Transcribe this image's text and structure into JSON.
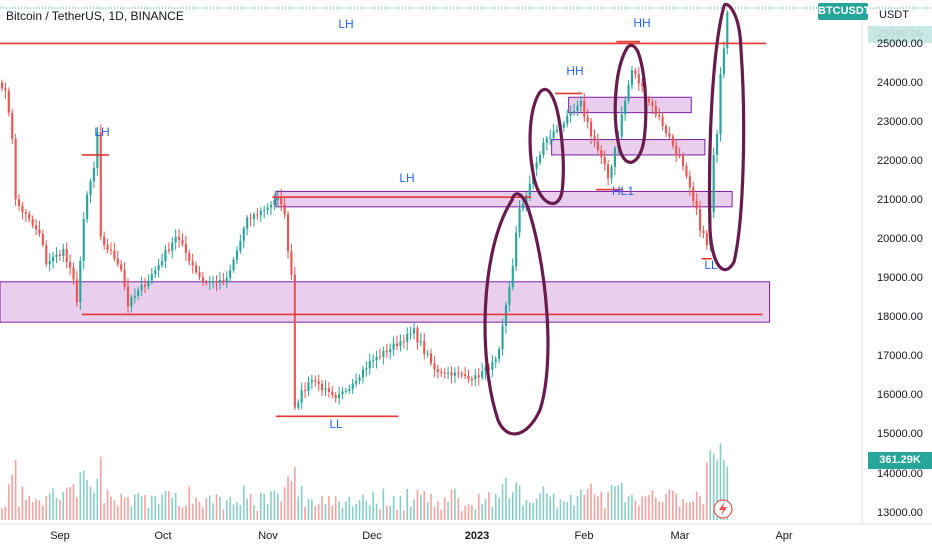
{
  "header": {
    "title": "Bitcoin / TetherUS, 1D, BINANCE"
  },
  "price_axis": {
    "currency": "USDT",
    "ticker_badge": "BTCUSDT",
    "ticker_price": "25500.00",
    "volume_badge": "361.29K",
    "ticks": [
      "25000.00",
      "24000.00",
      "23000.00",
      "22000.00",
      "21000.00",
      "20000.00",
      "19000.00",
      "18000.00",
      "17000.00",
      "16000.00",
      "15000.00",
      "14000.00",
      "13000.00"
    ]
  },
  "time_axis": {
    "ticks": [
      "Sep",
      "Oct",
      "Nov",
      "Dec",
      "2023",
      "Feb",
      "Mar",
      "Apr"
    ]
  },
  "annotations": {
    "lh_top": "LH",
    "lh_left": "LH",
    "lh_mid": "LH",
    "hh_top": "HH",
    "hh_left": "HH",
    "hl1": "HL1",
    "ll_nov": "LL",
    "ll_mar": "LL"
  },
  "colors": {
    "up": "#26a69a",
    "down": "#ef5350",
    "level": "#e53935",
    "zone_fill": "#e1bee7",
    "zone_border": "#7b1fa2",
    "marker": "#6a1b4d",
    "label": "#2962ff"
  },
  "chart_data": {
    "type": "candlestick",
    "title": "Bitcoin / TetherUS, 1D, BINANCE",
    "y_range": [
      12800,
      26300
    ],
    "x_range": [
      "2022-08-15",
      "2023-04-04"
    ],
    "date_ticks": [
      "Sep",
      "Oct",
      "Nov",
      "Dec",
      "2023",
      "Feb",
      "Mar",
      "Apr"
    ],
    "close_path": [
      {
        "date": "2022-08-15",
        "close": 24300
      },
      {
        "date": "2022-08-18",
        "close": 23200
      },
      {
        "date": "2022-08-19",
        "close": 21200
      },
      {
        "date": "2022-08-26",
        "close": 20300
      },
      {
        "date": "2022-08-28",
        "close": 19600
      },
      {
        "date": "2022-09-02",
        "close": 19900
      },
      {
        "date": "2022-09-06",
        "close": 18800
      },
      {
        "date": "2022-09-09",
        "close": 21300
      },
      {
        "date": "2022-09-12",
        "close": 22400
      },
      {
        "date": "2022-09-13",
        "close": 20200
      },
      {
        "date": "2022-09-19",
        "close": 19500
      },
      {
        "date": "2022-09-21",
        "close": 18500
      },
      {
        "date": "2022-09-29",
        "close": 19400
      },
      {
        "date": "2022-10-05",
        "close": 20300
      },
      {
        "date": "2022-10-13",
        "close": 19100
      },
      {
        "date": "2022-10-20",
        "close": 19100
      },
      {
        "date": "2022-10-26",
        "close": 20700
      },
      {
        "date": "2022-11-05",
        "close": 21300
      },
      {
        "date": "2022-11-08",
        "close": 19500
      },
      {
        "date": "2022-11-09",
        "close": 15900
      },
      {
        "date": "2022-11-14",
        "close": 16600
      },
      {
        "date": "2022-11-21",
        "close": 16000
      },
      {
        "date": "2022-12-01",
        "close": 17000
      },
      {
        "date": "2022-12-14",
        "close": 17800
      },
      {
        "date": "2022-12-20",
        "close": 16800
      },
      {
        "date": "2023-01-01",
        "close": 16600
      },
      {
        "date": "2023-01-08",
        "close": 17100
      },
      {
        "date": "2023-01-14",
        "close": 20900
      },
      {
        "date": "2023-01-21",
        "close": 22700
      },
      {
        "date": "2023-02-01",
        "close": 23700
      },
      {
        "date": "2023-02-09",
        "close": 21800
      },
      {
        "date": "2023-02-16",
        "close": 24600
      },
      {
        "date": "2023-02-25",
        "close": 23200
      },
      {
        "date": "2023-03-02",
        "close": 22300
      },
      {
        "date": "2023-03-10",
        "close": 20000
      },
      {
        "date": "2023-03-11",
        "close": 20700
      },
      {
        "date": "2023-03-14",
        "close": 24700
      },
      {
        "date": "2023-03-16",
        "close": 26100
      }
    ],
    "key_levels": [
      {
        "label": "LH",
        "price": 25300,
        "from": "2022-08-15",
        "to": "2023-03-28"
      },
      {
        "label": "LH",
        "price": 22400,
        "from": "2022-09-08",
        "to": "2022-09-16"
      },
      {
        "label": "LH",
        "price": 21300,
        "from": "2022-11-03",
        "to": "2023-01-18"
      },
      {
        "label": "",
        "price": 18250,
        "from": "2022-09-08",
        "to": "2023-03-27"
      },
      {
        "label": "LL",
        "price": 15600,
        "from": "2022-11-04",
        "to": "2022-12-10"
      },
      {
        "label": "HH",
        "price": 25350,
        "from": "2023-02-12",
        "to": "2023-02-19"
      },
      {
        "label": "HH",
        "price": 24000,
        "from": "2023-01-25",
        "to": "2023-02-02"
      },
      {
        "label": "HL1",
        "price": 21500,
        "from": "2023-02-06",
        "to": "2023-02-14"
      },
      {
        "label": "LL",
        "price": 19700,
        "from": "2023-03-09",
        "to": "2023-03-12"
      }
    ],
    "zones": [
      {
        "from": "2022-08-15",
        "to": "2023-03-29",
        "low": 18050,
        "high": 19100
      },
      {
        "from": "2022-11-04",
        "to": "2023-03-18",
        "low": 21050,
        "high": 21450
      },
      {
        "from": "2023-01-24",
        "to": "2023-03-10",
        "low": 22400,
        "high": 22800
      },
      {
        "from": "2023-01-29",
        "to": "2023-03-06",
        "low": 23500,
        "high": 23900
      }
    ],
    "volume_scale": [
      0,
      50
    ],
    "volume_last": "361.29K"
  }
}
